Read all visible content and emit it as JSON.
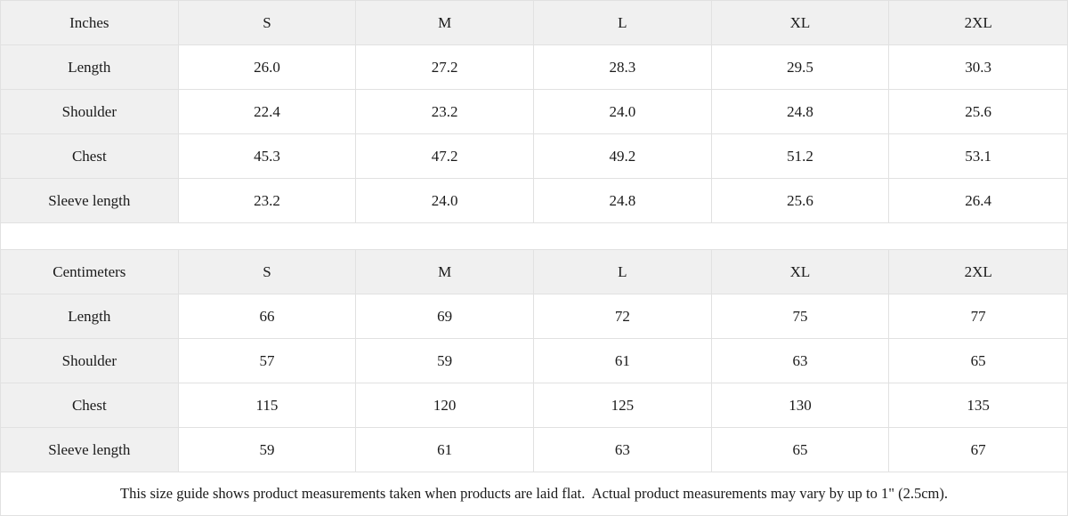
{
  "inches_table": {
    "header": [
      "Inches",
      "S",
      "M",
      "L",
      "XL",
      "2XL"
    ],
    "rows": [
      {
        "label": "Length",
        "values": [
          "26.0",
          "27.2",
          "28.3",
          "29.5",
          "30.3"
        ]
      },
      {
        "label": "Shoulder",
        "values": [
          "22.4",
          "23.2",
          "24.0",
          "24.8",
          "25.6"
        ]
      },
      {
        "label": "Chest",
        "values": [
          "45.3",
          "47.2",
          "49.2",
          "51.2",
          "53.1"
        ]
      },
      {
        "label": "Sleeve length",
        "values": [
          "23.2",
          "24.0",
          "24.8",
          "25.6",
          "26.4"
        ]
      }
    ]
  },
  "cm_table": {
    "header": [
      "Centimeters",
      "S",
      "M",
      "L",
      "XL",
      "2XL"
    ],
    "rows": [
      {
        "label": "Length",
        "values": [
          "66",
          "69",
          "72",
          "75",
          "77"
        ]
      },
      {
        "label": "Shoulder",
        "values": [
          "57",
          "59",
          "61",
          "63",
          "65"
        ]
      },
      {
        "label": "Chest",
        "values": [
          "115",
          "120",
          "125",
          "130",
          "135"
        ]
      },
      {
        "label": "Sleeve length",
        "values": [
          "59",
          "61",
          "63",
          "65",
          "67"
        ]
      }
    ]
  },
  "footer": {
    "note": "This size guide shows product measurements taken when products are laid flat.  Actual product measurements may vary by up to 1\" (2.5cm)."
  },
  "colors": {
    "header_bg": "#f0f0f0",
    "cell_bg": "#ffffff",
    "border": "#e1e1e1",
    "text": "#1a1a1a"
  }
}
